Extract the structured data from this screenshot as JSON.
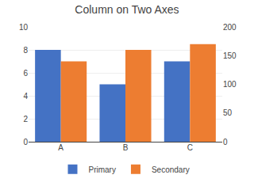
{
  "chart_data": {
    "type": "bar",
    "title": "Column on Two Axes",
    "categories": [
      "A",
      "B",
      "C"
    ],
    "series": [
      {
        "name": "Primary",
        "color": "#4472C4",
        "values": [
          8,
          5,
          7
        ]
      },
      {
        "name": "Secondary",
        "color": "#ED7D31",
        "values": [
          140,
          160,
          170
        ],
        "axis": "y2"
      }
    ],
    "ylim": [
      0,
      10
    ],
    "yticks": [
      0,
      2,
      4,
      6,
      8,
      10
    ],
    "y2lim": [
      0,
      200
    ],
    "y2ticks": [
      0,
      50,
      100,
      150,
      200
    ],
    "grid": true,
    "legend": "bottom"
  }
}
